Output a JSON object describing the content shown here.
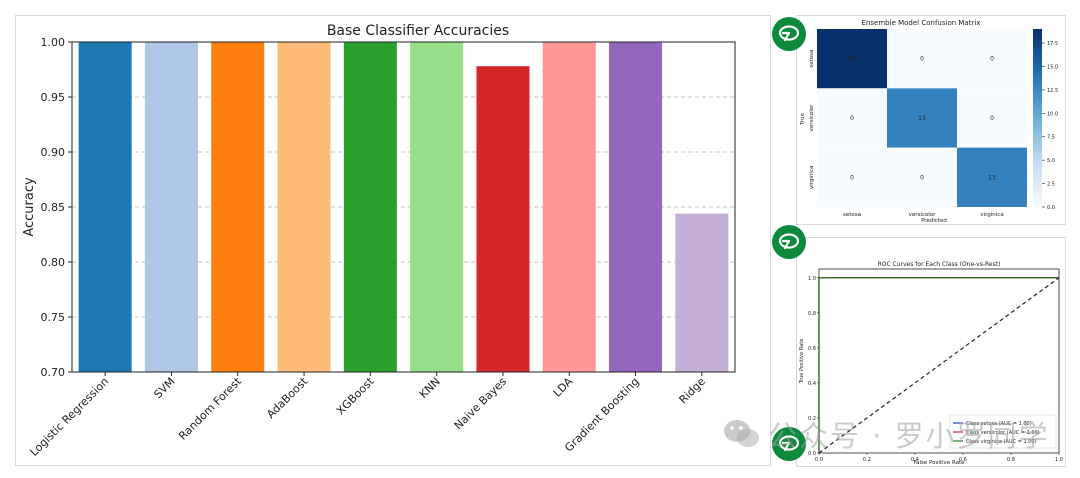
{
  "watermark": {
    "text": "公众号 · 罗小罗同学",
    "icon": "wechat-icon"
  },
  "chart_data": [
    {
      "type": "bar",
      "title": "Base Classifier Accuracies",
      "xlabel": "",
      "ylabel": "Accuracy",
      "ylim": [
        0.7,
        1.0
      ],
      "yticks": [
        "0.70",
        "0.75",
        "0.80",
        "0.85",
        "0.90",
        "0.95",
        "1.00"
      ],
      "grid": "y, dashed",
      "categories": [
        "Logistic Regression",
        "SVM",
        "Random Forest",
        "AdaBoost",
        "XGBoost",
        "KNN",
        "Naive Bayes",
        "LDA",
        "Gradient Boosting",
        "Ridge"
      ],
      "values": [
        1.0,
        1.0,
        1.0,
        1.0,
        1.0,
        1.0,
        0.978,
        1.0,
        1.0,
        0.844
      ],
      "colors": [
        "#1f77b4",
        "#aec7e8",
        "#ff7f0e",
        "#ffbb78",
        "#2ca02c",
        "#98df8a",
        "#d62728",
        "#ff9896",
        "#9467bd",
        "#c5b0d5"
      ]
    },
    {
      "type": "heatmap",
      "title": "Ensemble Model Confusion Matrix",
      "xlabel": "Predicted",
      "ylabel": "True",
      "x_categories": [
        "setosa",
        "versicolor",
        "virginica"
      ],
      "y_categories": [
        "setosa",
        "versicolor",
        "virginica"
      ],
      "values": [
        [
          19,
          0,
          0
        ],
        [
          0,
          13,
          0
        ],
        [
          0,
          0,
          13
        ]
      ],
      "colorbar_range": [
        0,
        19
      ],
      "colorbar_ticks": [
        "0.0",
        "2.5",
        "5.0",
        "7.5",
        "10.0",
        "12.5",
        "15.0",
        "17.5"
      ],
      "colormap": "Blues"
    },
    {
      "type": "line",
      "title": "ROC Curves for Each Class (One-vs-Rest)",
      "xlabel": "False Positive Rate",
      "ylabel": "True Positive Rate",
      "xlim": [
        0.0,
        1.0
      ],
      "ylim": [
        0.0,
        1.05
      ],
      "xticks": [
        "0.0",
        "0.2",
        "0.4",
        "0.6",
        "0.8",
        "1.0"
      ],
      "yticks": [
        "0.0",
        "0.2",
        "0.4",
        "0.6",
        "0.8",
        "1.0"
      ],
      "legend_position": "lower right",
      "series": [
        {
          "name": "Class setosa (AUC = 1.00)",
          "color": "#1f3bd6",
          "x": [
            0.0,
            0.0,
            1.0
          ],
          "y": [
            0.0,
            1.0,
            1.0
          ]
        },
        {
          "name": "Class versicolor (AUC = 1.00)",
          "color": "#d62728",
          "x": [
            0.0,
            0.0,
            1.0
          ],
          "y": [
            0.0,
            1.0,
            1.0
          ]
        },
        {
          "name": "Class virginica (AUC = 1.00)",
          "color": "#2a7d2a",
          "x": [
            0.0,
            0.0,
            1.0
          ],
          "y": [
            0.0,
            1.0,
            1.0
          ]
        },
        {
          "name": "",
          "color": "#222222",
          "style": "dashed",
          "x": [
            0.0,
            1.0
          ],
          "y": [
            0.0,
            1.0
          ]
        }
      ]
    }
  ]
}
